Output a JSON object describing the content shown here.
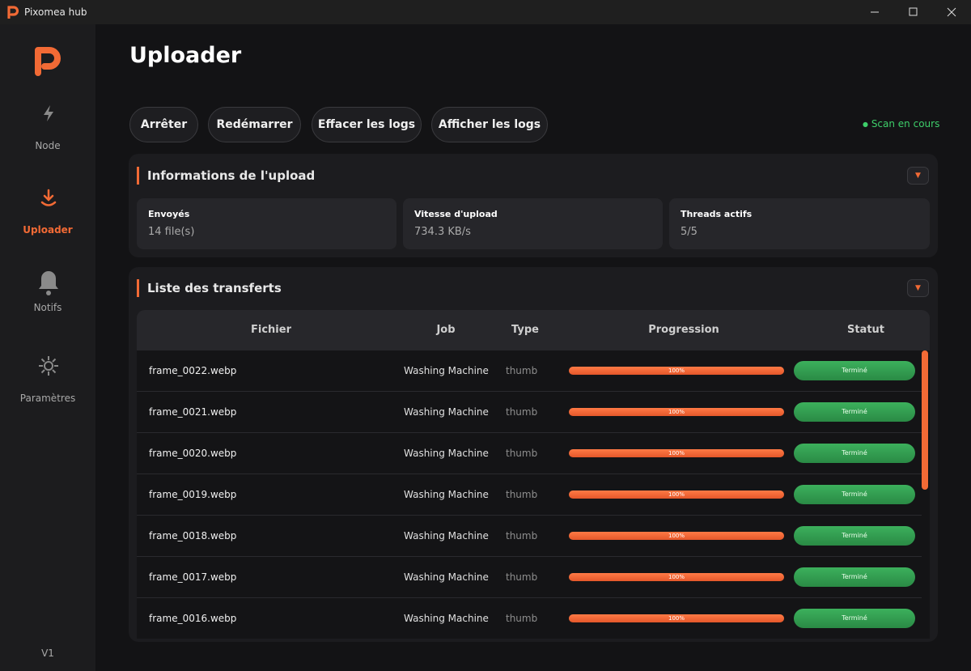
{
  "window": {
    "title": "Pixomea hub"
  },
  "sidebar": {
    "items": [
      {
        "label": "Node"
      },
      {
        "label": "Uploader"
      },
      {
        "label": "Notifs"
      },
      {
        "label": "Paramètres"
      }
    ],
    "version": "V1"
  },
  "page": {
    "title": "Uploader",
    "buttons": [
      "Arrêter",
      "Redémarrer",
      "Effacer les logs",
      "Afficher les logs"
    ],
    "status": "Scan en cours"
  },
  "upload_info": {
    "title": "Informations de l'upload",
    "stats": [
      {
        "label": "Envoyés",
        "value": "14 file(s)"
      },
      {
        "label": "Vitesse d'upload",
        "value": "734.3 KB/s"
      },
      {
        "label": "Threads actifs",
        "value": "5/5"
      }
    ]
  },
  "transfers": {
    "title": "Liste des transferts",
    "columns": [
      "Fichier",
      "Job",
      "Type",
      "Progression",
      "Statut"
    ],
    "rows": [
      [
        "frame_0022.webp",
        "Washing Machine",
        "thumb",
        "100%",
        "Terminé"
      ],
      [
        "frame_0021.webp",
        "Washing Machine",
        "thumb",
        "100%",
        "Terminé"
      ],
      [
        "frame_0020.webp",
        "Washing Machine",
        "thumb",
        "100%",
        "Terminé"
      ],
      [
        "frame_0019.webp",
        "Washing Machine",
        "thumb",
        "100%",
        "Terminé"
      ],
      [
        "frame_0018.webp",
        "Washing Machine",
        "thumb",
        "100%",
        "Terminé"
      ],
      [
        "frame_0017.webp",
        "Washing Machine",
        "thumb",
        "100%",
        "Terminé"
      ],
      [
        "frame_0016.webp",
        "Washing Machine",
        "thumb",
        "100%",
        "Terminé"
      ]
    ]
  }
}
